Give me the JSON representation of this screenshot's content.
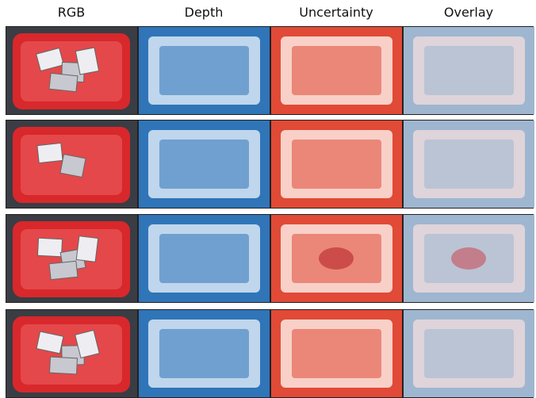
{
  "columns": [
    {
      "label": "RGB"
    },
    {
      "label": "Depth"
    },
    {
      "label": "Uncertainty"
    },
    {
      "label": "Overlay"
    }
  ],
  "rows": [
    {
      "content": "red bin, cluttered objects"
    },
    {
      "content": "red bin, few objects"
    },
    {
      "content": "red bin, cluttered objects"
    },
    {
      "content": "red bin, cluttered objects"
    }
  ],
  "colors": {
    "bin_red": "#d8282c",
    "depth_blue": "#2f75b8",
    "depth_light": "#d8e8f5",
    "uncert_red": "#e04a36",
    "uncert_light": "#fbe8e2",
    "overlay_base": "#9fb6d0"
  }
}
